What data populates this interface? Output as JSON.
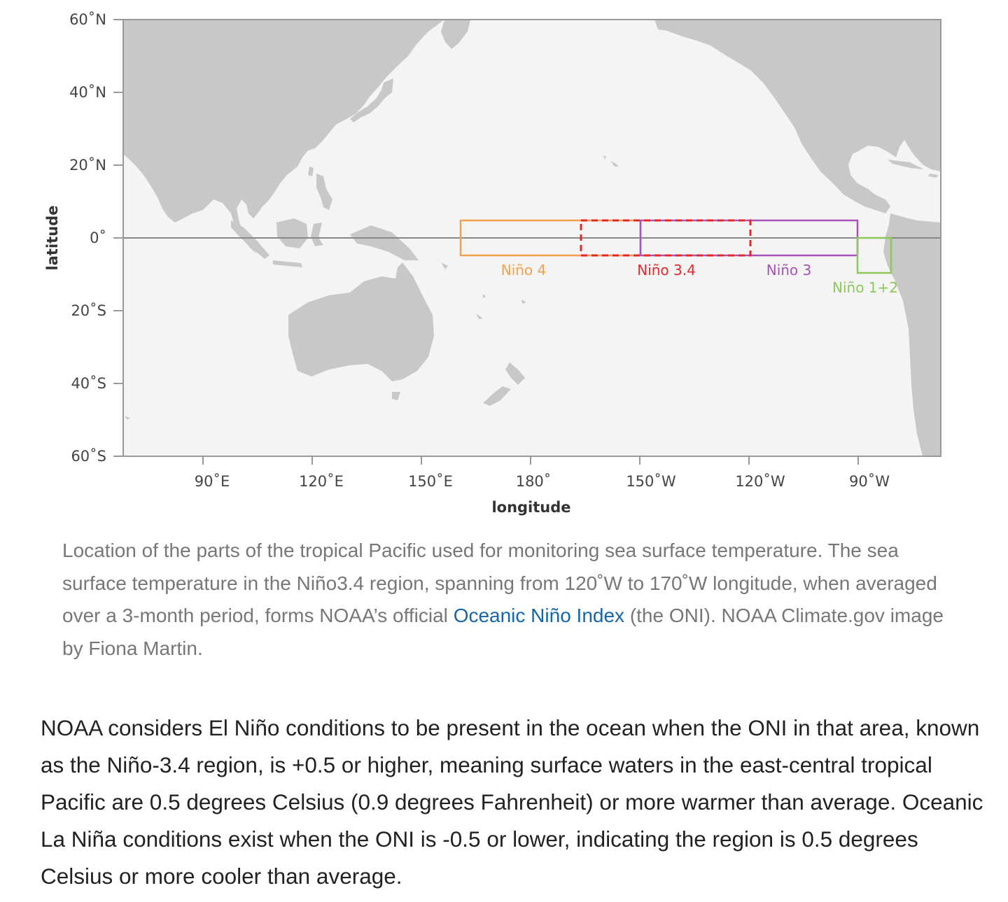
{
  "map": {
    "axes": {
      "ylabel": "latitude",
      "xlabel": "longitude",
      "lat_ticks": [
        "60˚N",
        "40˚N",
        "20˚N",
        "0˚",
        "20˚S",
        "40˚S",
        "60˚S"
      ],
      "lon_ticks": [
        "90˚E",
        "120˚E",
        "150˚E",
        "180˚",
        "150˚W",
        "120˚W",
        "90˚W"
      ]
    },
    "regions": [
      {
        "name": "Niño 4",
        "lon_range": [
          "160˚E",
          "150˚W"
        ],
        "lat_range": [
          "5˚N",
          "5˚S"
        ],
        "color": "#f5a04a",
        "style": "solid"
      },
      {
        "name": "Niño 3.4",
        "lon_range": [
          "170˚W",
          "120˚W"
        ],
        "lat_range": [
          "5˚N",
          "5˚S"
        ],
        "color": "#e8262a",
        "style": "dashed"
      },
      {
        "name": "Niño 3",
        "lon_range": [
          "150˚W",
          "90˚W"
        ],
        "lat_range": [
          "5˚N",
          "5˚S"
        ],
        "color": "#a652b8",
        "style": "solid"
      },
      {
        "name": "Niño 1+2",
        "lon_range": [
          "90˚W",
          "80˚W"
        ],
        "lat_range": [
          "0˚",
          "10˚S"
        ],
        "color": "#8cc85a",
        "style": "solid"
      }
    ],
    "colors": {
      "ocean": "#f4f4f4",
      "land": "#c8c8c8",
      "equator": "#888888",
      "frame": "#999999"
    }
  },
  "caption": {
    "text_before": "Location of the parts of the tropical Pacific used for monitoring sea surface temperature. The sea surface temperature in the Niño3.4 region, spanning from 120˚W to 170˚W longitude, when averaged over a 3-month period, forms NOAA’s official ",
    "link_text": "Oceanic Niño Index",
    "text_after": " (the ONI). NOAA Climate.gov image by Fiona Martin."
  },
  "body": {
    "paragraph": "NOAA considers El Niño conditions to be present in the ocean when the ONI in that area, known as the Niño-3.4 region, is +0.5 or higher, meaning surface waters in the east-central tropical Pacific are 0.5 degrees Celsius (0.9 degrees Fahrenheit) or more warmer than average. Oceanic La Niña conditions exist when the ONI is -0.5 or lower, indicating the region is 0.5 degrees Celsius or more cooler than average."
  }
}
